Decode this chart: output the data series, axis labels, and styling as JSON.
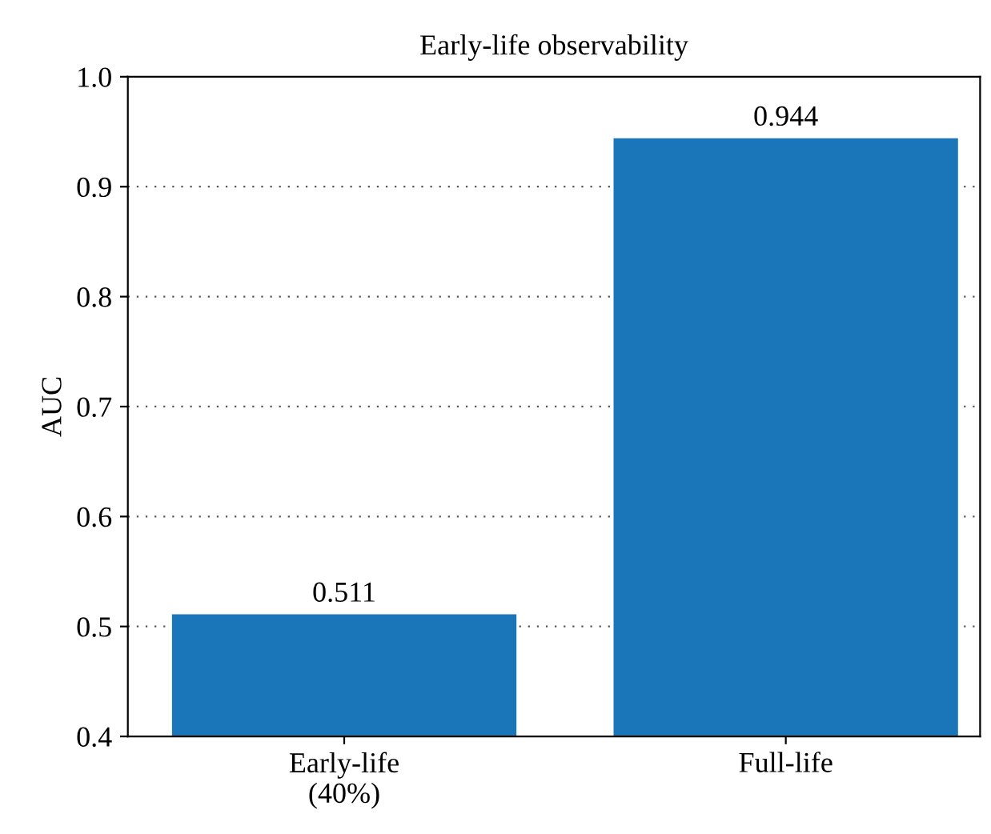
{
  "chart_data": {
    "type": "bar",
    "title": "Early-life observability",
    "ylabel": "AUC",
    "categories": [
      "Early-life\n(40%)",
      "Full-life"
    ],
    "values": [
      0.511,
      0.944
    ],
    "color": "#1a76b8",
    "ylim": [
      0.4,
      1.0
    ],
    "yticks": [
      0.4,
      0.5,
      0.6,
      0.7,
      0.8,
      0.9,
      {
        "value": 1.0,
        "label": "1.0"
      }
    ],
    "grid": "y",
    "data_labels": true
  }
}
